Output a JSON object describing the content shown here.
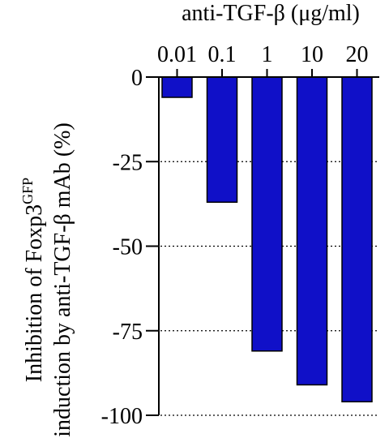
{
  "chart_data": {
    "type": "bar",
    "title": "anti-TGF-β (μg/ml)",
    "categories": [
      "0.01",
      "0.1",
      "1",
      "10",
      "20"
    ],
    "values": [
      -6,
      -37,
      -81,
      -91,
      -96
    ],
    "ylabel_line1": "Inhibition of Foxp3",
    "ylabel_superscript": "GFP",
    "ylabel_line2": "induction by anti-TGF-β mAb (%)",
    "ylim": [
      -100,
      0
    ],
    "yticks": [
      0,
      -25,
      -50,
      -75,
      -100
    ],
    "ytick_labels": [
      "0",
      "-25",
      "-50",
      "-75",
      "-100"
    ],
    "grid": "dotted horizontal lines at -25, -50, -75, -100",
    "bar_color": "#1010c8",
    "bar_edge_color": "#000000"
  }
}
